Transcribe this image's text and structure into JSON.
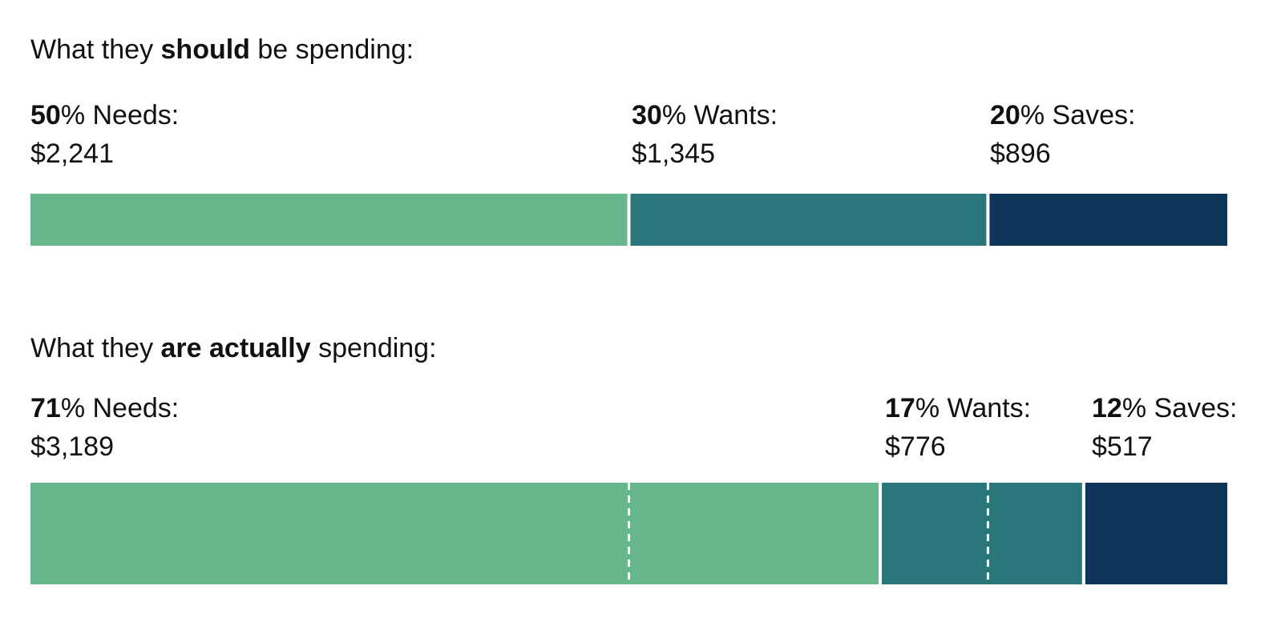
{
  "colors": {
    "needs": "#66b78c",
    "wants": "#29777a",
    "saves": "#0d355a"
  },
  "chart_data": [
    {
      "type": "bar",
      "orientation": "horizontal-stacked",
      "heading": {
        "pre": "What they ",
        "bold": "should",
        "post": " be spending:"
      },
      "segments": [
        {
          "percent": 50,
          "label": "% Needs:",
          "amount": "$2,241",
          "category": "needs"
        },
        {
          "percent": 30,
          "label": "% Wants:",
          "amount": "$1,345",
          "category": "wants"
        },
        {
          "percent": 20,
          "label": "% Saves:",
          "amount": "$896",
          "category": "saves"
        }
      ]
    },
    {
      "type": "bar",
      "orientation": "horizontal-stacked",
      "heading": {
        "pre": "What they ",
        "bold": "are actually",
        "post": " spending:"
      },
      "segments": [
        {
          "percent": 71,
          "label": "% Needs:",
          "amount": "$3,189",
          "category": "needs"
        },
        {
          "percent": 17,
          "label": "% Wants:",
          "amount": "$776",
          "category": "wants"
        },
        {
          "percent": 12,
          "label": "% Saves:",
          "amount": "$517",
          "category": "saves"
        }
      ],
      "reference_markers_percent": [
        50,
        80
      ]
    }
  ]
}
